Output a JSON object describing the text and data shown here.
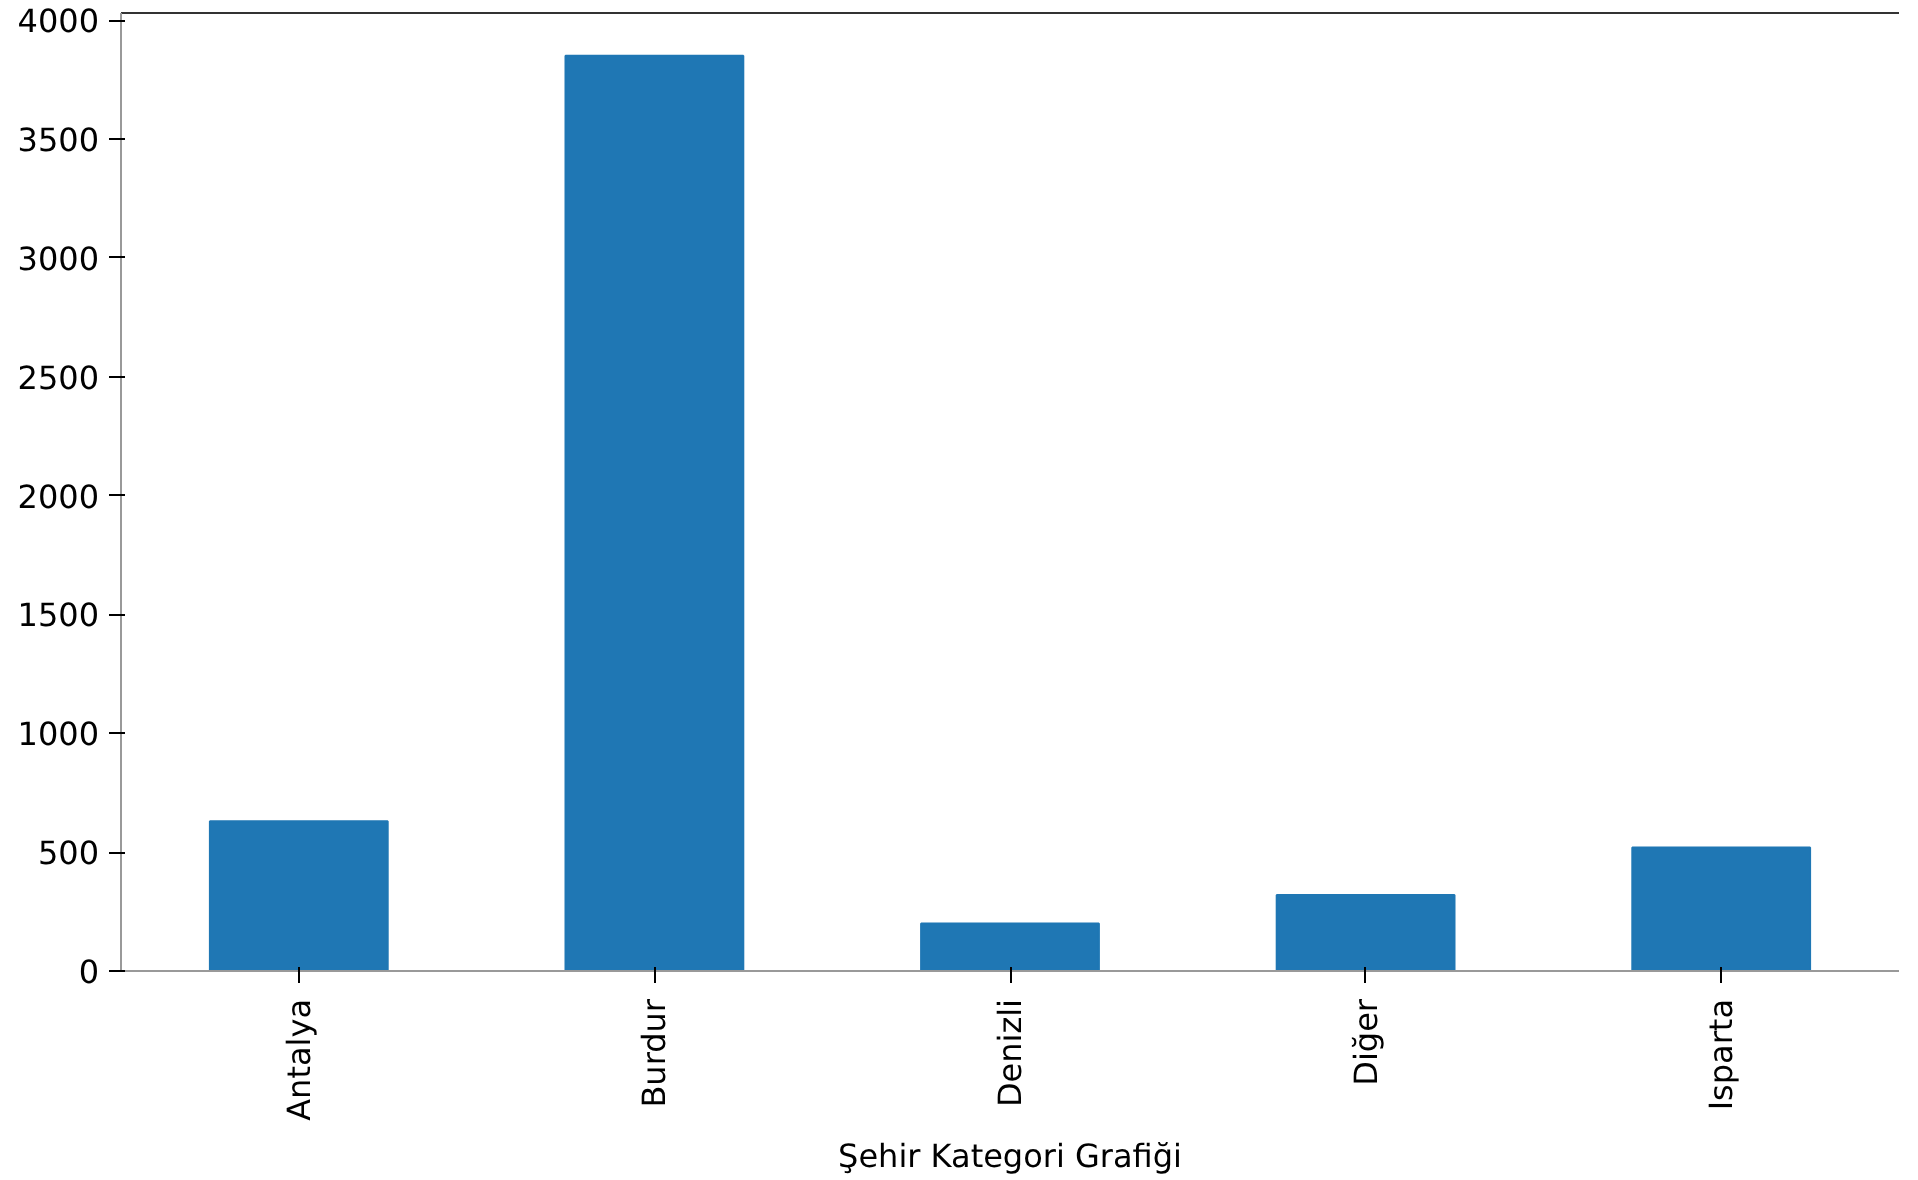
{
  "chart_data": {
    "type": "bar",
    "xlabel": "Şehir Kategori Grafiği",
    "categories": [
      "Antalya",
      "Burdur",
      "Denizli",
      "Diğer",
      "Isparta"
    ],
    "values": [
      630,
      3850,
      200,
      320,
      520
    ],
    "color": "#1f77b4",
    "ylim": [
      0,
      4030
    ],
    "yticks": [
      0,
      500,
      1000,
      1500,
      2000,
      2500,
      3000,
      3500,
      4000
    ],
    "grid": false
  }
}
